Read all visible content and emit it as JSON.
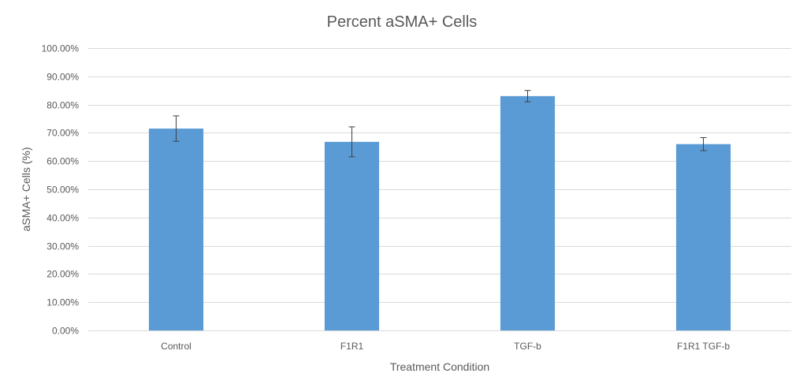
{
  "chart_data": {
    "type": "bar",
    "title": "Percent aSMA+ Cells",
    "xlabel": "Treatment Condition",
    "ylabel": "aSMA+ Cells (%)",
    "categories": [
      "Control",
      "F1R1",
      "TGF-b",
      "F1R1 TGF-b"
    ],
    "values": [
      71.5,
      66.8,
      83.0,
      66.0
    ],
    "error_bars": [
      4.5,
      5.3,
      2.0,
      2.3
    ],
    "ylim": [
      0,
      100
    ],
    "yticks": [
      0,
      10,
      20,
      30,
      40,
      50,
      60,
      70,
      80,
      90,
      100
    ],
    "ytick_labels": [
      "0.00%",
      "10.00%",
      "20.00%",
      "30.00%",
      "40.00%",
      "50.00%",
      "60.00%",
      "70.00%",
      "80.00%",
      "90.00%",
      "100.00%"
    ],
    "grid": true,
    "legend": "none",
    "colors": {
      "bar": "#5b9bd5",
      "grid": "#d9d9d9",
      "text": "#595959",
      "error_bar": "#404040"
    }
  }
}
